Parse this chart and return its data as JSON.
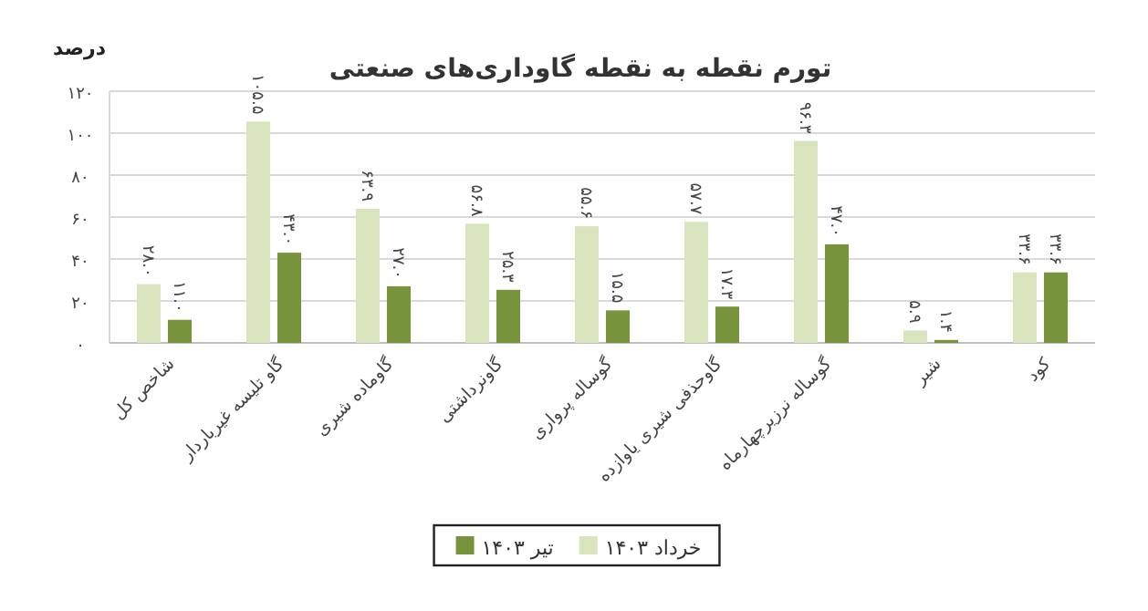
{
  "chart_data": {
    "type": "bar",
    "title": "تورم نقطه به نقطه گاوداری‌های صنعتی",
    "ylabel": "درصد",
    "categories": [
      "شاخص کل",
      "گاو تلیسه غیرباردار",
      "گاوماده شیری",
      "گاونرداشتی",
      "گوساله پرواری",
      "گاوحذفی شیری یاوازده",
      "گوساله نرزیرچهارماه",
      "شیر",
      "کود"
    ],
    "series": [
      {
        "name": "خرداد ۱۴۰۳",
        "color": "#d7e4bd",
        "values": [
          28.0,
          105.5,
          63.9,
          56.8,
          55.6,
          57.7,
          96.3,
          5.9,
          33.6
        ],
        "value_labels": [
          "۲۸.۰",
          "۱۰۵.۵",
          "۶۳.۹",
          "۵۶.۸",
          "۵۵.۶",
          "۵۷.۷",
          "۹۶.۳",
          "۵.۹",
          "۳۳.۶"
        ]
      },
      {
        "name": "تیر ۱۴۰۳",
        "color": "#77933c",
        "values": [
          11.0,
          43.0,
          27.0,
          25.3,
          15.5,
          17.3,
          47.0,
          1.4,
          33.6
        ],
        "value_labels": [
          "۱۱.۰",
          "۴۳.۰",
          "۲۷.۰",
          "۲۵.۳",
          "۱۵.۵",
          "۱۷.۳",
          "۴۷.۰",
          "۱.۴",
          "۳۳.۶"
        ]
      }
    ],
    "ylim": [
      0,
      120
    ],
    "yticks": [
      {
        "value": 0,
        "label": "۰"
      },
      {
        "value": 20,
        "label": "۲۰"
      },
      {
        "value": 40,
        "label": "۴۰"
      },
      {
        "value": 60,
        "label": "۶۰"
      },
      {
        "value": 80,
        "label": "۸۰"
      },
      {
        "value": 100,
        "label": "۱۰۰"
      },
      {
        "value": 120,
        "label": "۱۲۰"
      }
    ],
    "grid": "y",
    "legend": "bottom"
  }
}
